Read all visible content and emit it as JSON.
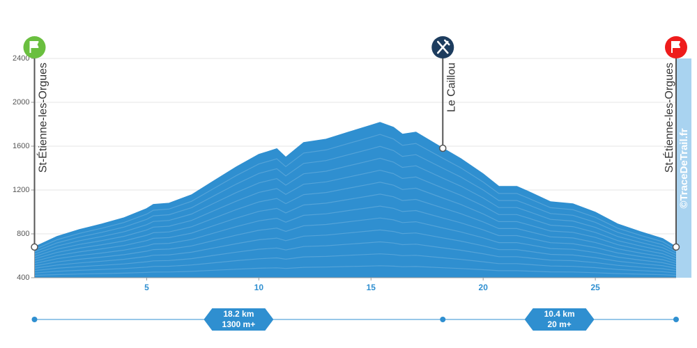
{
  "chart_data": {
    "type": "area",
    "x": [
      0,
      1,
      2,
      3,
      4,
      5,
      5.3,
      6,
      7,
      8,
      9,
      10,
      10.8,
      11.2,
      12,
      13,
      14,
      15,
      15.4,
      16,
      16.4,
      17,
      18.2,
      19,
      20,
      20.7,
      21.5,
      22,
      23,
      24,
      25,
      26,
      27,
      28,
      28.6
    ],
    "values": [
      680,
      775,
      838,
      889,
      946,
      1029,
      1067,
      1079,
      1155,
      1283,
      1410,
      1524,
      1575,
      1498,
      1632,
      1663,
      1727,
      1790,
      1816,
      1771,
      1708,
      1727,
      1581,
      1486,
      1346,
      1232,
      1232,
      1187,
      1092,
      1073,
      997,
      889,
      819,
      756,
      680
    ],
    "color": "#2f8fd0",
    "xlim": [
      0,
      28.6
    ],
    "ylim": [
      400,
      2400
    ],
    "xticks": [
      5,
      10,
      15,
      20,
      25
    ],
    "yticks": [
      400,
      800,
      1200,
      1600,
      2000,
      2400
    ],
    "grid": true,
    "waypoints": [
      {
        "label": "St-Étienne-les-Orgues",
        "x": 0,
        "y": 680,
        "icon": "flag",
        "color": "#6abf3f"
      },
      {
        "label": "Le Caillou",
        "x": 18.2,
        "y": 1581,
        "icon": "food",
        "color": "#1d3c5e"
      },
      {
        "label": "St-Étienne-les-Orgues",
        "x": 28.6,
        "y": 680,
        "icon": "flag",
        "color": "#ee1c1c"
      }
    ],
    "segments": [
      {
        "distance": "18.2 km",
        "gain": "1300 m+"
      },
      {
        "distance": "10.4 km",
        "gain": "20 m+"
      }
    ],
    "watermark": "©TraceDeTrail.fr"
  }
}
